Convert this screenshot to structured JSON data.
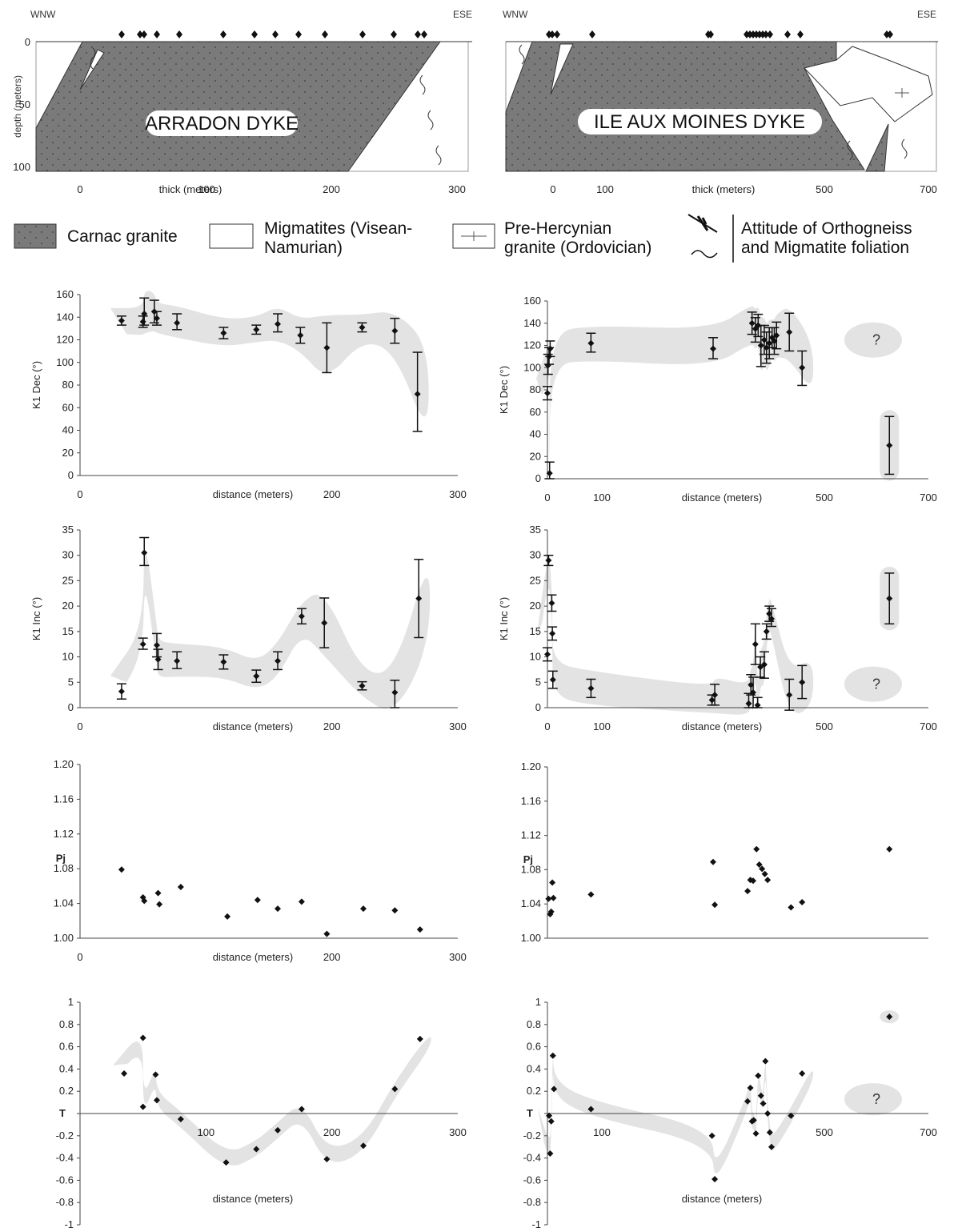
{
  "cross_sections": [
    {
      "dyke_label": "ARRADON DYKE",
      "left_label": "WNW",
      "right_label": "ESE",
      "ylabel": "depth (meters)",
      "xlabel": "thick (meters)",
      "y_ticks": [
        "0",
        "50",
        "100"
      ],
      "x_ticks": [
        "0",
        "100",
        "200",
        "300"
      ],
      "foliation_marks": 14
    },
    {
      "dyke_label": "ILE AUX MOINES DYKE",
      "left_label": "WNW",
      "right_label": "ESE",
      "xlabel": "thick (meters)",
      "x_ticks": [
        "0",
        "100",
        "500",
        "700"
      ],
      "foliation_marks": 18
    }
  ],
  "legend": {
    "items": [
      {
        "label": "Carnac granite",
        "swatch": "carnac"
      },
      {
        "label": "Migmatites (Visean-Namurian)",
        "line1": "Migmatites (Visean-",
        "line2": "Namurian)",
        "swatch": "migmatite"
      },
      {
        "label": "Pre-Hercynian granite (Ordovician)",
        "line1": "Pre-Hercynian",
        "line2": "granite (Ordovician)",
        "swatch": "prehercynian"
      },
      {
        "label": "Attitude of Orthogneiss and Migmatite foliation",
        "line1": "Attitude of Orthogneiss",
        "line2": "and Migmatite foliation",
        "swatch": "foliation"
      }
    ]
  },
  "colors": {
    "granite_fill": "#7a7a7a",
    "envelope": "#e3e3e3",
    "marker": "#111111",
    "axis": "#444444"
  },
  "chart_data": [
    {
      "id": "arradon-k1dec",
      "type": "scatter",
      "ylabel": "K1 Dec  (°)",
      "xlabel": "distance (meters)",
      "xlim": [
        0,
        300
      ],
      "ylim": [
        0,
        160
      ],
      "x_tick_labels": [
        "0",
        "200",
        "300"
      ],
      "y_tick_labels": [
        "0",
        "20",
        "40",
        "60",
        "80",
        "100",
        "120",
        "140",
        "160"
      ],
      "error_bars": true,
      "envelope": true,
      "points": [
        {
          "x": 33,
          "y": 137,
          "lo": 133,
          "hi": 141
        },
        {
          "x": 50,
          "y": 136,
          "lo": 131,
          "hi": 141
        },
        {
          "x": 51,
          "y": 143,
          "lo": 133,
          "hi": 157
        },
        {
          "x": 59,
          "y": 145,
          "lo": 135,
          "hi": 155
        },
        {
          "x": 61,
          "y": 139,
          "lo": 133,
          "hi": 145
        },
        {
          "x": 77,
          "y": 135,
          "lo": 129,
          "hi": 143
        },
        {
          "x": 114,
          "y": 126,
          "lo": 121,
          "hi": 131
        },
        {
          "x": 140,
          "y": 129,
          "lo": 125,
          "hi": 133
        },
        {
          "x": 157,
          "y": 134,
          "lo": 127,
          "hi": 143
        },
        {
          "x": 175,
          "y": 124,
          "lo": 117,
          "hi": 131
        },
        {
          "x": 196,
          "y": 113,
          "lo": 91,
          "hi": 135
        },
        {
          "x": 224,
          "y": 131,
          "lo": 127,
          "hi": 135
        },
        {
          "x": 250,
          "y": 128,
          "lo": 117,
          "hi": 139
        },
        {
          "x": 268,
          "y": 72,
          "lo": 39,
          "hi": 109
        }
      ]
    },
    {
      "id": "moines-k1dec",
      "type": "scatter",
      "ylabel": "K1 Dec  (°)",
      "xlabel": "distance (meters)",
      "xlim": [
        0,
        700
      ],
      "ylim": [
        0,
        160
      ],
      "x_tick_labels": [
        "0",
        "100",
        "500",
        "700"
      ],
      "y_tick_labels": [
        "0",
        "20",
        "40",
        "60",
        "80",
        "100",
        "120",
        "140",
        "160"
      ],
      "error_bars": true,
      "envelope": true,
      "question_mark": "?",
      "points": [
        {
          "x": 0,
          "y": 77,
          "lo": 71,
          "hi": 83
        },
        {
          "x": 1,
          "y": 102,
          "lo": 94,
          "hi": 112
        },
        {
          "x": 3,
          "y": 110,
          "lo": 103,
          "hi": 118
        },
        {
          "x": 5,
          "y": 117,
          "lo": 110,
          "hi": 124
        },
        {
          "x": 4,
          "y": 5,
          "lo": 0,
          "hi": 15
        },
        {
          "x": 80,
          "y": 122,
          "lo": 114,
          "hi": 131
        },
        {
          "x": 300,
          "y": 117,
          "lo": 108,
          "hi": 127
        },
        {
          "x": 370,
          "y": 140,
          "lo": 130,
          "hi": 150
        },
        {
          "x": 376,
          "y": 135,
          "lo": 123,
          "hi": 145
        },
        {
          "x": 381,
          "y": 138,
          "lo": 128,
          "hi": 148
        },
        {
          "x": 386,
          "y": 120,
          "lo": 101,
          "hi": 138
        },
        {
          "x": 392,
          "y": 125,
          "lo": 112,
          "hi": 138
        },
        {
          "x": 396,
          "y": 118,
          "lo": 104,
          "hi": 132
        },
        {
          "x": 401,
          "y": 122,
          "lo": 108,
          "hi": 136
        },
        {
          "x": 406,
          "y": 127,
          "lo": 118,
          "hi": 136
        },
        {
          "x": 410,
          "y": 124,
          "lo": 112,
          "hi": 136
        },
        {
          "x": 414,
          "y": 129,
          "lo": 117,
          "hi": 141
        },
        {
          "x": 437,
          "y": 132,
          "lo": 115,
          "hi": 149
        },
        {
          "x": 460,
          "y": 100,
          "lo": 84,
          "hi": 115
        },
        {
          "x": 625,
          "y": 30,
          "lo": 4,
          "hi": 56
        }
      ]
    },
    {
      "id": "arradon-k1inc",
      "type": "scatter",
      "ylabel": "K1 Inc  (°)",
      "xlabel": "distance (meters)",
      "xlim": [
        0,
        300
      ],
      "ylim": [
        0,
        35
      ],
      "x_tick_labels": [
        "0",
        "200",
        "300"
      ],
      "y_tick_labels": [
        "0",
        "5",
        "10",
        "15",
        "20",
        "25",
        "30",
        "35"
      ],
      "error_bars": true,
      "envelope": true,
      "points": [
        {
          "x": 33,
          "y": 3.2,
          "lo": 1.7,
          "hi": 4.7
        },
        {
          "x": 50,
          "y": 12.5,
          "lo": 11.5,
          "hi": 13.7
        },
        {
          "x": 51,
          "y": 30.5,
          "lo": 28,
          "hi": 33.5
        },
        {
          "x": 61,
          "y": 12.3,
          "lo": 10,
          "hi": 14.6
        },
        {
          "x": 62,
          "y": 9.5,
          "lo": 7.5,
          "hi": 11.5
        },
        {
          "x": 77,
          "y": 9.2,
          "lo": 7.7,
          "hi": 11
        },
        {
          "x": 114,
          "y": 9,
          "lo": 7.6,
          "hi": 10.4
        },
        {
          "x": 140,
          "y": 6.2,
          "lo": 5,
          "hi": 7.4
        },
        {
          "x": 157,
          "y": 9.2,
          "lo": 7.5,
          "hi": 11
        },
        {
          "x": 176,
          "y": 18,
          "lo": 16.5,
          "hi": 19.5
        },
        {
          "x": 194,
          "y": 16.7,
          "lo": 11.8,
          "hi": 21.6
        },
        {
          "x": 224,
          "y": 4.3,
          "lo": 3.5,
          "hi": 5.1
        },
        {
          "x": 250,
          "y": 3,
          "lo": 0,
          "hi": 5.4
        },
        {
          "x": 269,
          "y": 21.5,
          "lo": 13.8,
          "hi": 29.2
        }
      ]
    },
    {
      "id": "moines-k1inc",
      "type": "scatter",
      "ylabel": "K1 Inc  (°)",
      "xlabel": "distance (meters)",
      "xlim": [
        0,
        700
      ],
      "ylim": [
        0,
        35
      ],
      "x_tick_labels": [
        "0",
        "100",
        "500",
        "700"
      ],
      "y_tick_labels": [
        "0",
        "5",
        "10",
        "15",
        "20",
        "25",
        "30",
        "35"
      ],
      "error_bars": true,
      "envelope": true,
      "question_mark": "?",
      "points": [
        {
          "x": 0,
          "y": 10.5,
          "lo": 9.2,
          "hi": 11.8
        },
        {
          "x": 2,
          "y": 29,
          "lo": 28,
          "hi": 30
        },
        {
          "x": 8,
          "y": 20.6,
          "lo": 19,
          "hi": 22.2
        },
        {
          "x": 9,
          "y": 14.6,
          "lo": 13.3,
          "hi": 15.9
        },
        {
          "x": 10,
          "y": 5.5,
          "lo": 3.8,
          "hi": 7.2
        },
        {
          "x": 80,
          "y": 3.8,
          "lo": 2,
          "hi": 5.6
        },
        {
          "x": 298,
          "y": 1.5,
          "lo": 0.5,
          "hi": 2.5
        },
        {
          "x": 303,
          "y": 2.5,
          "lo": 0.5,
          "hi": 4.6
        },
        {
          "x": 364,
          "y": 0.8,
          "lo": 0,
          "hi": 2.8
        },
        {
          "x": 368,
          "y": 4.5,
          "lo": 2.5,
          "hi": 6.5
        },
        {
          "x": 372,
          "y": 3,
          "lo": 0,
          "hi": 6
        },
        {
          "x": 376,
          "y": 12.5,
          "lo": 8.5,
          "hi": 16.5
        },
        {
          "x": 380,
          "y": 0.5,
          "lo": 0,
          "hi": 2
        },
        {
          "x": 385,
          "y": 8,
          "lo": 6,
          "hi": 10
        },
        {
          "x": 392,
          "y": 8.5,
          "lo": 5.8,
          "hi": 11
        },
        {
          "x": 396,
          "y": 15,
          "lo": 13.5,
          "hi": 16.5
        },
        {
          "x": 401,
          "y": 18.5,
          "lo": 17,
          "hi": 20
        },
        {
          "x": 405,
          "y": 17.5,
          "lo": 16,
          "hi": 19.5
        },
        {
          "x": 437,
          "y": 2.5,
          "lo": -0.5,
          "hi": 5.6
        },
        {
          "x": 460,
          "y": 5,
          "lo": 1.8,
          "hi": 8.3
        },
        {
          "x": 625,
          "y": 21.5,
          "lo": 16.5,
          "hi": 26.5
        }
      ]
    },
    {
      "id": "arradon-pj",
      "type": "scatter",
      "ylabel": "Pj",
      "xlabel": "distance (meters)",
      "xlim": [
        0,
        300
      ],
      "ylim": [
        1.0,
        1.2
      ],
      "x_tick_labels": [
        "0",
        "200",
        "300"
      ],
      "y_tick_labels": [
        "1.00",
        "1.04",
        "1.08",
        "1.12",
        "1.16",
        "1.20"
      ],
      "points": [
        {
          "x": 33,
          "y": 1.079
        },
        {
          "x": 50,
          "y": 1.047
        },
        {
          "x": 51,
          "y": 1.043
        },
        {
          "x": 62,
          "y": 1.052
        },
        {
          "x": 63,
          "y": 1.039
        },
        {
          "x": 80,
          "y": 1.059
        },
        {
          "x": 117,
          "y": 1.025
        },
        {
          "x": 141,
          "y": 1.044
        },
        {
          "x": 157,
          "y": 1.034
        },
        {
          "x": 176,
          "y": 1.042
        },
        {
          "x": 196,
          "y": 1.005
        },
        {
          "x": 225,
          "y": 1.034
        },
        {
          "x": 250,
          "y": 1.032
        },
        {
          "x": 270,
          "y": 1.01
        }
      ]
    },
    {
      "id": "moines-pj",
      "type": "scatter",
      "ylabel": "Pj",
      "xlim": [
        0,
        700
      ],
      "ylim": [
        1.0,
        1.2
      ],
      "y_tick_labels": [
        "1.00",
        "1.04",
        "1.08",
        "1.12",
        "1.16",
        "1.20"
      ],
      "points": [
        {
          "x": 2,
          "y": 1.046
        },
        {
          "x": 5,
          "y": 1.028
        },
        {
          "x": 7,
          "y": 1.031
        },
        {
          "x": 9,
          "y": 1.065
        },
        {
          "x": 11,
          "y": 1.047
        },
        {
          "x": 80,
          "y": 1.051
        },
        {
          "x": 300,
          "y": 1.089
        },
        {
          "x": 303,
          "y": 1.039
        },
        {
          "x": 362,
          "y": 1.055
        },
        {
          "x": 367,
          "y": 1.068
        },
        {
          "x": 372,
          "y": 1.067
        },
        {
          "x": 378,
          "y": 1.104
        },
        {
          "x": 383,
          "y": 1.086
        },
        {
          "x": 388,
          "y": 1.081
        },
        {
          "x": 393,
          "y": 1.075
        },
        {
          "x": 398,
          "y": 1.068
        },
        {
          "x": 440,
          "y": 1.036
        },
        {
          "x": 460,
          "y": 1.042
        },
        {
          "x": 625,
          "y": 1.104
        }
      ]
    },
    {
      "id": "arradon-t",
      "type": "scatter",
      "ylabel": "T",
      "xlabel": "distance (meters)",
      "xlim": [
        0,
        300
      ],
      "ylim": [
        -1,
        1
      ],
      "x_tick_labels": [
        "100",
        "200",
        "300"
      ],
      "y_tick_labels": [
        "-1",
        "-0.8",
        "-0.6",
        "-0.4",
        "-0.2",
        "",
        "0.2",
        "0.4",
        "0.6",
        "0.8",
        "1"
      ],
      "envelope": true,
      "points": [
        {
          "x": 35,
          "y": 0.36
        },
        {
          "x": 50,
          "y": 0.68
        },
        {
          "x": 50,
          "y": 0.06
        },
        {
          "x": 60,
          "y": 0.35
        },
        {
          "x": 61,
          "y": 0.12
        },
        {
          "x": 80,
          "y": -0.05
        },
        {
          "x": 116,
          "y": -0.44
        },
        {
          "x": 140,
          "y": -0.32
        },
        {
          "x": 157,
          "y": -0.15
        },
        {
          "x": 176,
          "y": 0.04
        },
        {
          "x": 196,
          "y": -0.41
        },
        {
          "x": 225,
          "y": -0.29
        },
        {
          "x": 250,
          "y": 0.22
        },
        {
          "x": 270,
          "y": 0.67
        }
      ]
    },
    {
      "id": "moines-t",
      "type": "scatter",
      "ylabel": "T",
      "xlabel": "distance (meters)",
      "xlim": [
        0,
        700
      ],
      "ylim": [
        -1,
        1
      ],
      "x_tick_labels": [
        "100",
        "500",
        "700"
      ],
      "y_tick_labels": [
        "-1",
        "-0.8",
        "-0.6",
        "-0.4",
        "-0.2",
        "",
        "0.2",
        "0.4",
        "0.6",
        "0.8",
        "1"
      ],
      "envelope": true,
      "question_mark": "?",
      "points": [
        {
          "x": 3,
          "y": -0.02
        },
        {
          "x": 5,
          "y": -0.36
        },
        {
          "x": 7,
          "y": -0.07
        },
        {
          "x": 10,
          "y": 0.52
        },
        {
          "x": 12,
          "y": 0.22
        },
        {
          "x": 80,
          "y": 0.04
        },
        {
          "x": 298,
          "y": -0.2
        },
        {
          "x": 303,
          "y": -0.59
        },
        {
          "x": 362,
          "y": 0.11
        },
        {
          "x": 367,
          "y": 0.23
        },
        {
          "x": 370,
          "y": -0.07
        },
        {
          "x": 373,
          "y": -0.06
        },
        {
          "x": 377,
          "y": -0.18
        },
        {
          "x": 381,
          "y": 0.34
        },
        {
          "x": 386,
          "y": 0.16
        },
        {
          "x": 390,
          "y": 0.09
        },
        {
          "x": 394,
          "y": 0.47
        },
        {
          "x": 398,
          "y": 0.0
        },
        {
          "x": 402,
          "y": -0.17
        },
        {
          "x": 405,
          "y": -0.3
        },
        {
          "x": 440,
          "y": -0.02
        },
        {
          "x": 460,
          "y": 0.36
        },
        {
          "x": 625,
          "y": 0.87
        }
      ]
    }
  ]
}
